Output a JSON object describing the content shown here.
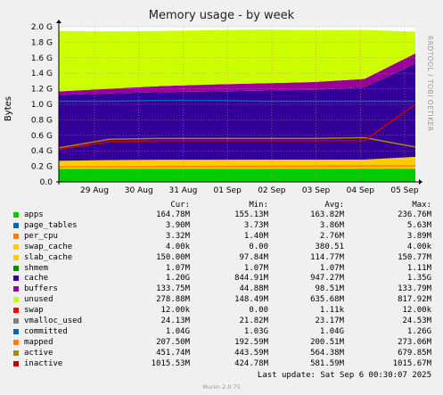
{
  "side_label": "RRDTOOL / TOBI OETIKER",
  "chart_data": {
    "type": "area",
    "title": "Memory usage - by week",
    "ylabel": "Bytes",
    "ylim": [
      0,
      2.0
    ],
    "yticks": [
      "0.0",
      "0.2 G",
      "0.4 G",
      "0.6 G",
      "0.8 G",
      "1.0 G",
      "1.2 G",
      "1.4 G",
      "1.6 G",
      "1.8 G",
      "2.0 G"
    ],
    "xticks": [
      "29 Aug",
      "30 Aug",
      "31 Aug",
      "01 Sep",
      "02 Sep",
      "03 Sep",
      "04 Sep",
      "05 Sep"
    ],
    "x_range": [
      "28 Aug 12:00",
      "05 Sep 23:00"
    ],
    "grid": true,
    "stacked_series": [
      {
        "name": "apps",
        "color": "#00cc00",
        "values": [
          0.163,
          0.163,
          0.163,
          0.163,
          0.164,
          0.164,
          0.165,
          0.165
        ]
      },
      {
        "name": "page_tables",
        "color": "#0066b3",
        "values": [
          0.004,
          0.004,
          0.004,
          0.004,
          0.004,
          0.004,
          0.004,
          0.004
        ]
      },
      {
        "name": "per_cpu",
        "color": "#ff8000",
        "values": [
          0.003,
          0.003,
          0.003,
          0.003,
          0.003,
          0.003,
          0.003,
          0.003
        ]
      },
      {
        "name": "slab_cache",
        "color": "#ffcc00",
        "values": [
          0.1,
          0.11,
          0.115,
          0.115,
          0.115,
          0.115,
          0.115,
          0.15
        ]
      },
      {
        "name": "shmem",
        "color": "#008f00",
        "values": [
          0.001,
          0.001,
          0.001,
          0.001,
          0.001,
          0.001,
          0.001,
          0.001
        ]
      },
      {
        "name": "cache",
        "color": "#330099",
        "values": [
          0.85,
          0.86,
          0.87,
          0.88,
          0.89,
          0.9,
          0.93,
          1.2
        ]
      },
      {
        "name": "buffers",
        "color": "#990099",
        "values": [
          0.045,
          0.06,
          0.08,
          0.09,
          0.095,
          0.1,
          0.11,
          0.134
        ]
      },
      {
        "name": "unused",
        "color": "#ccff00",
        "values": [
          0.78,
          0.74,
          0.71,
          0.7,
          0.69,
          0.67,
          0.63,
          0.28
        ]
      }
    ],
    "line_series": [
      {
        "name": "committed",
        "color": "#0066b3",
        "values": [
          1.04,
          1.04,
          1.05,
          1.05,
          1.04,
          1.04,
          1.04,
          1.04
        ]
      },
      {
        "name": "mapped",
        "color": "#ff8000",
        "values": [
          0.193,
          0.195,
          0.198,
          0.2,
          0.201,
          0.203,
          0.205,
          0.207
        ]
      },
      {
        "name": "active",
        "color": "#aa8800",
        "values": [
          0.44,
          0.55,
          0.56,
          0.56,
          0.56,
          0.56,
          0.57,
          0.45
        ]
      },
      {
        "name": "inactive",
        "color": "#cc0000",
        "values": [
          0.42,
          0.52,
          0.53,
          0.53,
          0.53,
          0.53,
          0.53,
          1.0
        ]
      }
    ]
  },
  "legend": {
    "headers": [
      "Cur:",
      "Min:",
      "Avg:",
      "Max:"
    ],
    "rows": [
      {
        "name": "apps",
        "color": "#00cc00",
        "cur": "164.78M",
        "min": "155.13M",
        "avg": "163.82M",
        "max": "236.76M"
      },
      {
        "name": "page_tables",
        "color": "#0066b3",
        "cur": "3.90M",
        "min": "3.73M",
        "avg": "3.86M",
        "max": "5.63M"
      },
      {
        "name": "per_cpu",
        "color": "#ff8000",
        "cur": "3.32M",
        "min": "1.40M",
        "avg": "2.76M",
        "max": "3.89M"
      },
      {
        "name": "swap_cache",
        "color": "#ffcc00",
        "cur": "4.00k",
        "min": "0.00",
        "avg": "380.51",
        "max": "4.00k"
      },
      {
        "name": "slab_cache",
        "color": "#ffcc00",
        "cur": "150.00M",
        "min": "97.84M",
        "avg": "114.77M",
        "max": "150.77M"
      },
      {
        "name": "shmem",
        "color": "#008f00",
        "cur": "1.07M",
        "min": "1.07M",
        "avg": "1.07M",
        "max": "1.11M"
      },
      {
        "name": "cache",
        "color": "#330099",
        "cur": "1.20G",
        "min": "844.91M",
        "avg": "947.27M",
        "max": "1.35G"
      },
      {
        "name": "buffers",
        "color": "#990099",
        "cur": "133.75M",
        "min": "44.88M",
        "avg": "98.51M",
        "max": "133.79M"
      },
      {
        "name": "unused",
        "color": "#ccff00",
        "cur": "278.88M",
        "min": "148.49M",
        "avg": "635.68M",
        "max": "817.92M"
      },
      {
        "name": "swap",
        "color": "#ff0000",
        "cur": "12.00k",
        "min": "0.00",
        "avg": "1.11k",
        "max": "12.00k"
      },
      {
        "name": "vmalloc_used",
        "color": "#808080",
        "cur": "24.13M",
        "min": "21.82M",
        "avg": "23.17M",
        "max": "24.53M"
      },
      {
        "name": "committed",
        "color": "#0066b3",
        "cur": "1.04G",
        "min": "1.03G",
        "avg": "1.04G",
        "max": "1.26G"
      },
      {
        "name": "mapped",
        "color": "#ff8000",
        "cur": "207.50M",
        "min": "192.59M",
        "avg": "200.51M",
        "max": "273.06M"
      },
      {
        "name": "active",
        "color": "#aa8800",
        "cur": "451.74M",
        "min": "443.59M",
        "avg": "564.38M",
        "max": "679.85M"
      },
      {
        "name": "inactive",
        "color": "#cc0000",
        "cur": "1015.53M",
        "min": "424.78M",
        "avg": "581.59M",
        "max": "1015.67M"
      }
    ]
  },
  "last_update": "Last update: Sat Sep  6 00:30:07 2025",
  "version": "Munin 2.0.75"
}
